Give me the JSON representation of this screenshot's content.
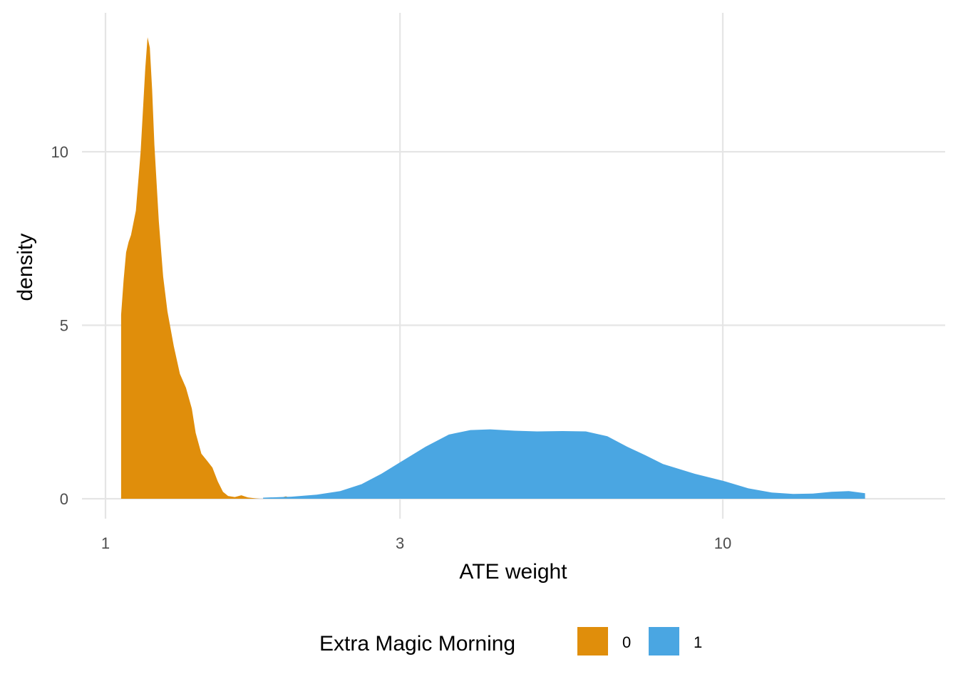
{
  "chart_data": {
    "type": "area",
    "xlabel": "ATE weight",
    "ylabel": "density",
    "x_scale": "log10",
    "xlim": [
      1,
      17
    ],
    "ylim": [
      0,
      13.5
    ],
    "x_ticks": [
      1,
      3,
      10
    ],
    "x_tick_labels": [
      "1",
      "3",
      "10"
    ],
    "y_ticks": [
      0,
      5,
      10
    ],
    "y_tick_labels": [
      "0",
      "5",
      "10"
    ],
    "grid": true,
    "legend": {
      "title": "Extra Magic Morning",
      "position": "bottom"
    },
    "series": [
      {
        "name": "0",
        "color": "#E08E0B",
        "x": [
          1.06,
          1.07,
          1.08,
          1.09,
          1.1,
          1.12,
          1.14,
          1.16,
          1.17,
          1.18,
          1.19,
          1.2,
          1.22,
          1.24,
          1.26,
          1.29,
          1.32,
          1.35,
          1.38,
          1.4,
          1.43,
          1.46,
          1.49,
          1.52,
          1.55,
          1.58,
          1.62,
          1.66,
          1.7,
          1.75,
          1.78,
          1.8,
          1.83,
          1.86,
          1.92,
          1.94,
          1.96,
          1.98,
          2.0
        ],
        "y": [
          5.3,
          6.3,
          7.1,
          7.4,
          7.6,
          8.3,
          10.0,
          12.4,
          13.3,
          13.0,
          11.8,
          10.2,
          8.0,
          6.4,
          5.4,
          4.4,
          3.6,
          3.2,
          2.6,
          1.9,
          1.3,
          1.1,
          0.9,
          0.5,
          0.2,
          0.08,
          0.05,
          0.1,
          0.04,
          0.01,
          0.0,
          0.0,
          0.03,
          0.02,
          0.0,
          0.05,
          0.07,
          0.04,
          0.0
        ]
      },
      {
        "name": "1",
        "color": "#4AA6E2",
        "x": [
          1.8,
          2.0,
          2.2,
          2.4,
          2.6,
          2.8,
          3.0,
          3.3,
          3.6,
          3.9,
          4.2,
          4.6,
          5.0,
          5.5,
          6.0,
          6.5,
          7.0,
          7.5,
          8.0,
          9.0,
          10.0,
          11.0,
          12.0,
          13.0,
          14.0,
          15.0,
          16.0,
          17.0
        ],
        "y": [
          0.03,
          0.06,
          0.12,
          0.22,
          0.42,
          0.72,
          1.05,
          1.5,
          1.85,
          1.98,
          2.0,
          1.96,
          1.94,
          1.95,
          1.94,
          1.8,
          1.5,
          1.25,
          1.0,
          0.72,
          0.52,
          0.3,
          0.18,
          0.14,
          0.15,
          0.2,
          0.22,
          0.16
        ]
      }
    ]
  }
}
